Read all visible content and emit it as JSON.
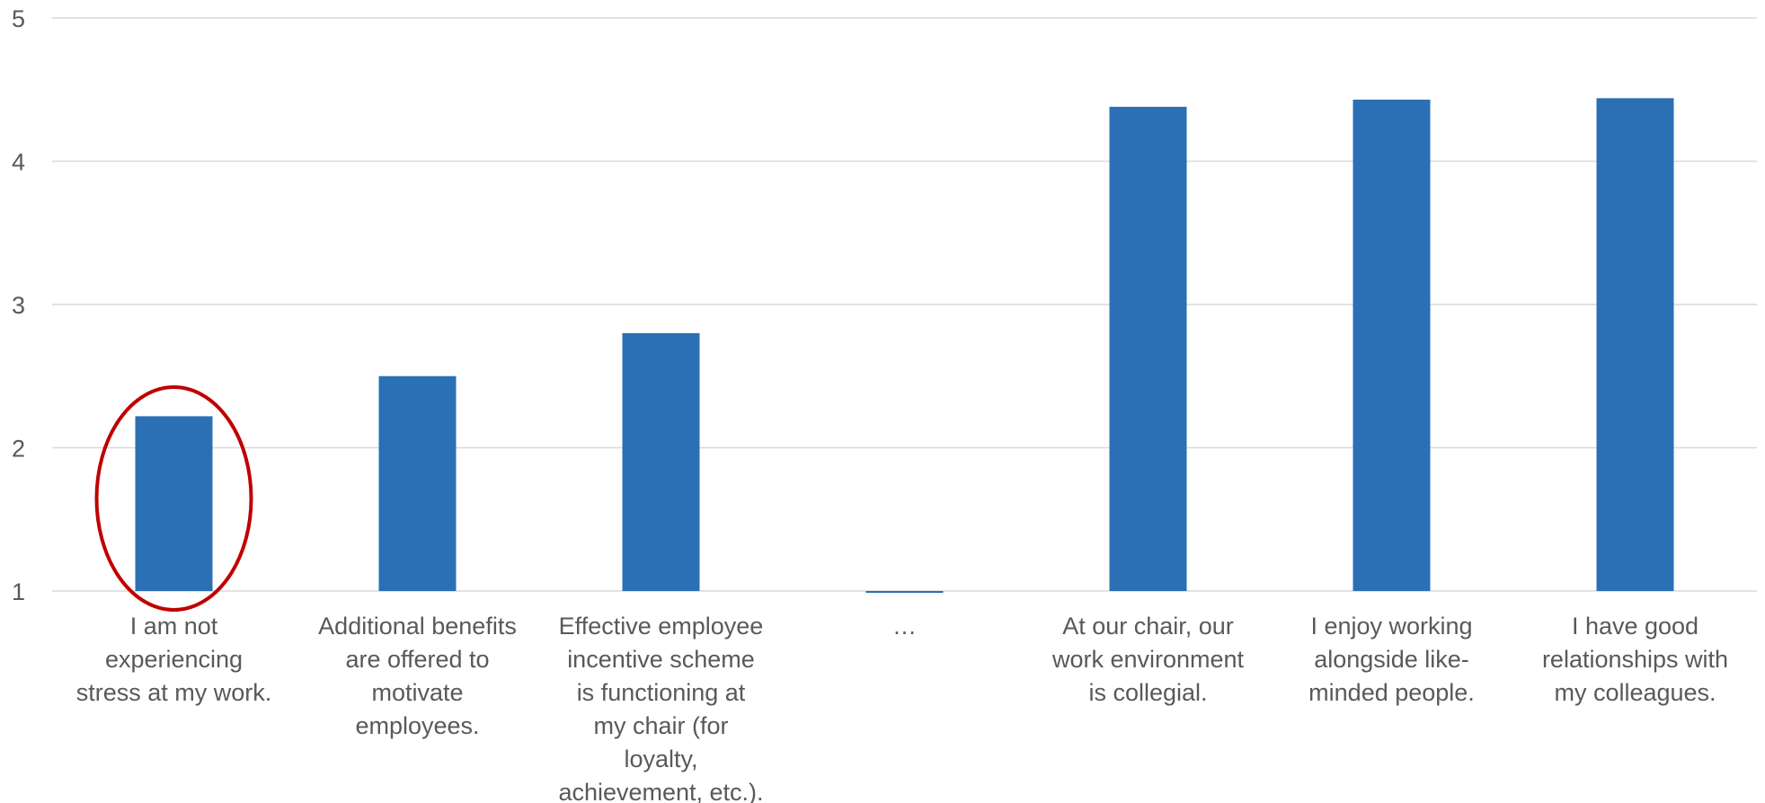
{
  "chart_data": {
    "type": "bar",
    "categories": [
      [
        "I am not",
        "experiencing",
        "stress at my work."
      ],
      [
        "Additional benefits",
        "are offered to",
        "motivate",
        "employees."
      ],
      [
        "Effective employee",
        "incentive scheme",
        "is functioning at",
        "my chair (for",
        "loyalty,",
        "achievement, etc.)."
      ],
      [
        "…"
      ],
      [
        "At our chair, our",
        "work environment",
        "is collegial."
      ],
      [
        "I enjoy working",
        "alongside like-",
        "minded people."
      ],
      [
        "I have good",
        "relationships with",
        "my colleagues."
      ]
    ],
    "values": [
      2.22,
      2.5,
      2.8,
      0.99,
      4.38,
      4.43,
      4.44
    ],
    "ylim": [
      1,
      5
    ],
    "yticks": [
      1,
      2,
      3,
      4,
      5
    ],
    "grid": true,
    "title": "",
    "xlabel": "",
    "ylabel": "",
    "highlight_index": 0
  },
  "colors": {
    "bar": "#2B70B4",
    "grid": "#D9D9D9",
    "axis_text": "#595959",
    "highlight_ring": "#C00000"
  }
}
